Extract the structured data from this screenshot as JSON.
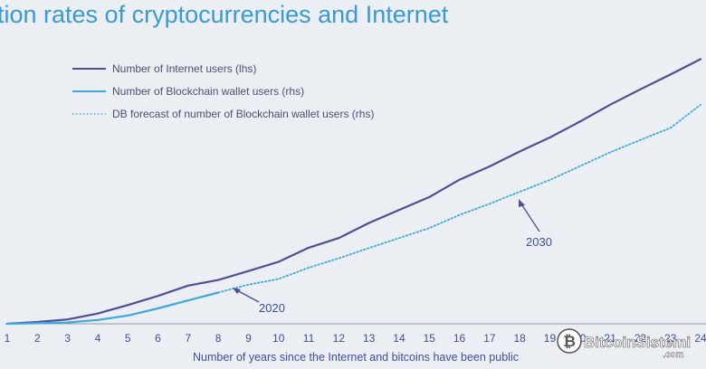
{
  "chart_data": {
    "type": "line",
    "title": "tion rates of cryptocurrencies and Internet",
    "xlabel": "Number of years since the Internet and bitcoins have been public",
    "ylabel": "",
    "x_ticks": [
      "1",
      "2",
      "3",
      "4",
      "5",
      "6",
      "7",
      "8",
      "9",
      "10",
      "11",
      "12",
      "13",
      "14",
      "15",
      "16",
      "17",
      "18",
      "19",
      "20",
      "21",
      "22",
      "23",
      "24"
    ],
    "xlim": [
      1,
      24
    ],
    "ylim": [
      0,
      100
    ],
    "legend_position": "top-left",
    "grid": false,
    "series": [
      {
        "name": "Number of Internet users (lhs)",
        "color": "#4e4f94",
        "style": "solid",
        "x": [
          1,
          2,
          3,
          4,
          5,
          6,
          7,
          8,
          9,
          10,
          11,
          12,
          13,
          14,
          15,
          16,
          17,
          18,
          19,
          20,
          21,
          22,
          23,
          24
        ],
        "y": [
          0,
          0.7,
          1.7,
          4,
          7.3,
          10.9,
          14.9,
          17.1,
          20.6,
          24.2,
          29.7,
          33.5,
          39.4,
          44.5,
          49.5,
          56.3,
          61.5,
          67.3,
          72.8,
          79,
          85.6,
          91.6,
          97.4,
          103.4
        ]
      },
      {
        "name": "Number of Blockchain wallet users (rhs)",
        "color": "#3eaadc",
        "style": "solid",
        "x": [
          1,
          2,
          3,
          4,
          5,
          6,
          7,
          8
        ],
        "y": [
          0,
          0.2,
          0.5,
          1.5,
          3.2,
          6,
          9.1,
          12.2
        ]
      },
      {
        "name": "DB forecast of number of Blockchain wallet users (rhs)",
        "color": "#3eaadc",
        "style": "dotted",
        "x": [
          8,
          9,
          10,
          11,
          12,
          13,
          14,
          15,
          16,
          17,
          18,
          19,
          20,
          21,
          22,
          23,
          24
        ],
        "y": [
          12.2,
          15.3,
          17.5,
          21.9,
          25.6,
          29.6,
          33.5,
          37.4,
          42.5,
          46.9,
          51.6,
          56.2,
          61.6,
          67,
          71.8,
          76.5,
          85.6
        ]
      }
    ],
    "annotations": [
      {
        "text": "2020",
        "x": 8.2
      },
      {
        "text": "2030",
        "x": 18.2
      }
    ]
  },
  "watermark": {
    "brand": "BitcoinSistemi",
    "domain": ".com",
    "icon": "bitcoin-icon"
  }
}
